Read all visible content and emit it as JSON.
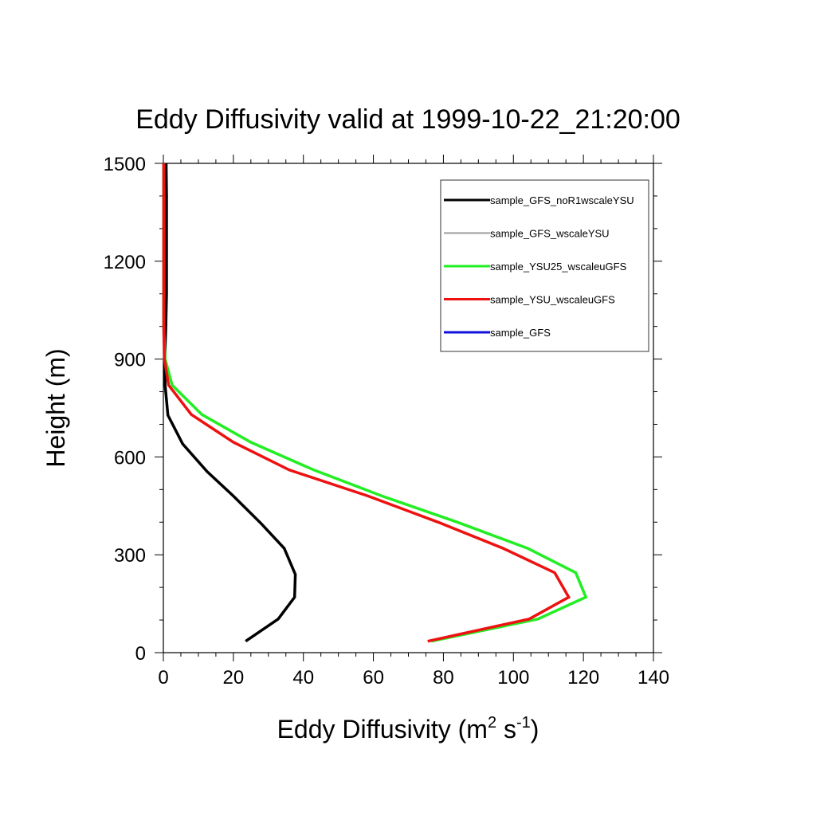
{
  "chart_data": {
    "type": "line",
    "title": "Eddy Diffusivity valid at 1999-10-22_21:20:00",
    "xlabel": {
      "base": "Eddy Diffusivity (m",
      "sup1": "2",
      "mid": " s",
      "sup2": "-1",
      "end": ")"
    },
    "ylabel": "Height (m)",
    "xlim": [
      0,
      140
    ],
    "ylim": [
      0,
      1500
    ],
    "xticks": [
      0,
      20,
      40,
      60,
      80,
      100,
      120,
      140
    ],
    "yticks": [
      0,
      300,
      600,
      900,
      1200,
      1500
    ],
    "grid": false,
    "legend_position": "top-right",
    "series": [
      {
        "name": "sample_GFS_noR1wscaleYSU",
        "color": "#000000",
        "points": [
          [
            23.5,
            35
          ],
          [
            32.8,
            103
          ],
          [
            37.5,
            170
          ],
          [
            37.7,
            240
          ],
          [
            34.5,
            320
          ],
          [
            28,
            395
          ],
          [
            20,
            480
          ],
          [
            12.5,
            555
          ],
          [
            5.5,
            640
          ],
          [
            1.3,
            728
          ],
          [
            0.5,
            820
          ],
          [
            0.4,
            900
          ],
          [
            0.7,
            1000
          ],
          [
            0.9,
            1100
          ],
          [
            0.9,
            1200
          ],
          [
            0.9,
            1300
          ],
          [
            0.9,
            1400
          ],
          [
            0.8,
            1500
          ]
        ]
      },
      {
        "name": "sample_GFS_wscaleYSU",
        "color": "#bbbbbb",
        "points": []
      },
      {
        "name": "sample_YSU25_wscaleuGFS",
        "color": "#22ee22",
        "points": [
          [
            76.5,
            35
          ],
          [
            107,
            103
          ],
          [
            120.7,
            170
          ],
          [
            117.8,
            245
          ],
          [
            104,
            320
          ],
          [
            84,
            400
          ],
          [
            62.5,
            480
          ],
          [
            43,
            560
          ],
          [
            25,
            645
          ],
          [
            11,
            730
          ],
          [
            2.5,
            820
          ],
          [
            0.5,
            900
          ],
          [
            0.1,
            1000
          ],
          [
            0.1,
            1100
          ],
          [
            0.1,
            1200
          ],
          [
            0.1,
            1300
          ],
          [
            0.1,
            1400
          ],
          [
            0.1,
            1500
          ]
        ]
      },
      {
        "name": "sample_YSU_wscaleuGFS",
        "color": "#ee1111",
        "points": [
          [
            75.5,
            35
          ],
          [
            104.5,
            103
          ],
          [
            115.8,
            170
          ],
          [
            111.8,
            245
          ],
          [
            97,
            320
          ],
          [
            78.5,
            400
          ],
          [
            58.5,
            480
          ],
          [
            36,
            560
          ],
          [
            20,
            645
          ],
          [
            8,
            730
          ],
          [
            1.5,
            820
          ],
          [
            0.3,
            900
          ],
          [
            0.1,
            1000
          ],
          [
            0.1,
            1100
          ],
          [
            0.1,
            1200
          ],
          [
            0.1,
            1300
          ],
          [
            0.1,
            1400
          ],
          [
            0.1,
            1500
          ]
        ]
      },
      {
        "name": "sample_GFS",
        "color": "#1111dd",
        "points": []
      }
    ]
  }
}
